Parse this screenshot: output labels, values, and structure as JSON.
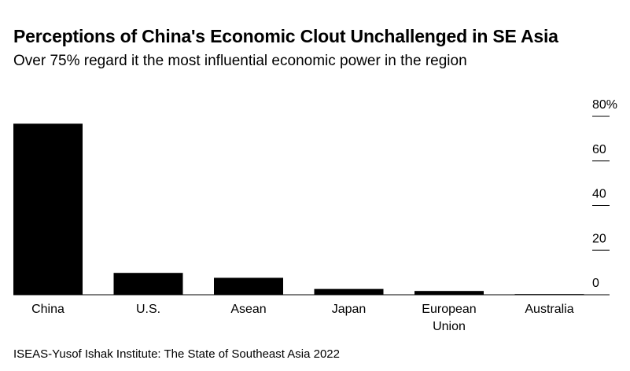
{
  "title": "Perceptions of China's Economic Clout Unchallenged in SE Asia",
  "subtitle": "Over 75% regard it the most influential economic power in the region",
  "source": "ISEAS-Yusof Ishak Institute: The State of Southeast Asia 2022",
  "chart_data": {
    "type": "bar",
    "categories": [
      [
        "China"
      ],
      [
        "U.S."
      ],
      [
        "Asean"
      ],
      [
        "Japan"
      ],
      [
        "European",
        "Union"
      ],
      [
        "Australia"
      ]
    ],
    "values": [
      76.7,
      9.8,
      7.6,
      2.6,
      1.7,
      0.3
    ],
    "ylim": [
      0,
      80
    ],
    "yticks": [
      0,
      20,
      40,
      60,
      80
    ],
    "ytick_labels": [
      "0",
      "20",
      "40",
      "60",
      "80%"
    ],
    "y_axis_position": "right",
    "grid": false,
    "bar_color": "#000000"
  }
}
